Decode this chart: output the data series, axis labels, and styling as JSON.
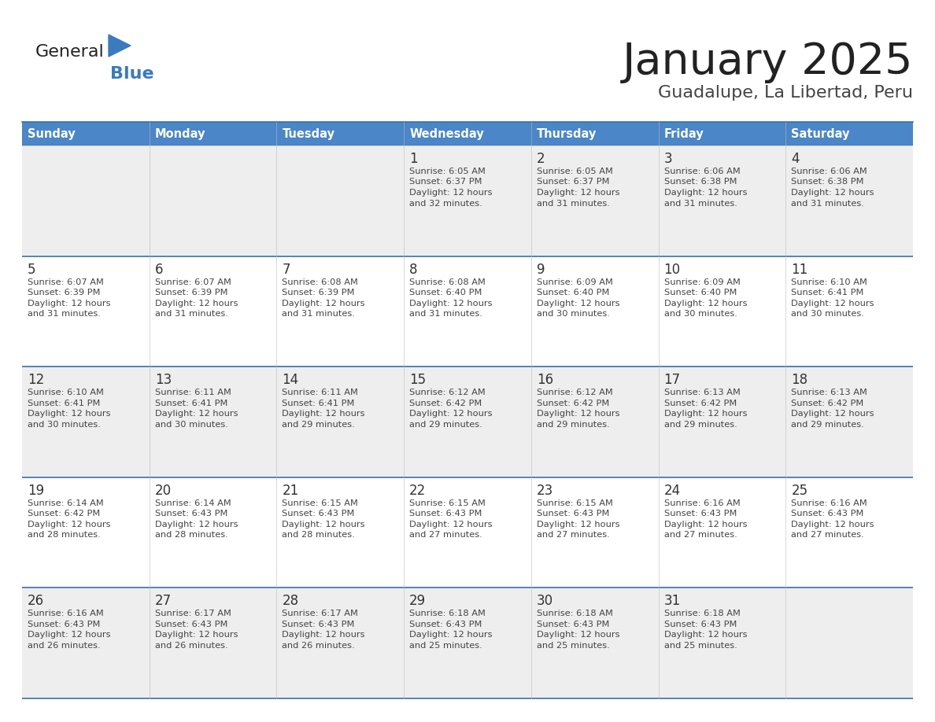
{
  "title": "January 2025",
  "subtitle": "Guadalupe, La Libertad, Peru",
  "header_bg": "#4a86c8",
  "header_text_color": "#ffffff",
  "day_names": [
    "Sunday",
    "Monday",
    "Tuesday",
    "Wednesday",
    "Thursday",
    "Friday",
    "Saturday"
  ],
  "row_bg_even": "#eeeeee",
  "row_bg_odd": "#ffffff",
  "cell_text_color": "#444444",
  "day_num_color": "#333333",
  "border_color": "#3a6fa8",
  "title_color": "#222222",
  "subtitle_color": "#444444",
  "logo_general_color": "#222222",
  "logo_blue_color": "#3a7abf",
  "calendar": [
    [
      {
        "day": "",
        "sunrise": "",
        "sunset": "",
        "daylight": ""
      },
      {
        "day": "",
        "sunrise": "",
        "sunset": "",
        "daylight": ""
      },
      {
        "day": "",
        "sunrise": "",
        "sunset": "",
        "daylight": ""
      },
      {
        "day": "1",
        "sunrise": "6:05 AM",
        "sunset": "6:37 PM",
        "daylight": "12 hours and 32 minutes."
      },
      {
        "day": "2",
        "sunrise": "6:05 AM",
        "sunset": "6:37 PM",
        "daylight": "12 hours and 31 minutes."
      },
      {
        "day": "3",
        "sunrise": "6:06 AM",
        "sunset": "6:38 PM",
        "daylight": "12 hours and 31 minutes."
      },
      {
        "day": "4",
        "sunrise": "6:06 AM",
        "sunset": "6:38 PM",
        "daylight": "12 hours and 31 minutes."
      }
    ],
    [
      {
        "day": "5",
        "sunrise": "6:07 AM",
        "sunset": "6:39 PM",
        "daylight": "12 hours and 31 minutes."
      },
      {
        "day": "6",
        "sunrise": "6:07 AM",
        "sunset": "6:39 PM",
        "daylight": "12 hours and 31 minutes."
      },
      {
        "day": "7",
        "sunrise": "6:08 AM",
        "sunset": "6:39 PM",
        "daylight": "12 hours and 31 minutes."
      },
      {
        "day": "8",
        "sunrise": "6:08 AM",
        "sunset": "6:40 PM",
        "daylight": "12 hours and 31 minutes."
      },
      {
        "day": "9",
        "sunrise": "6:09 AM",
        "sunset": "6:40 PM",
        "daylight": "12 hours and 30 minutes."
      },
      {
        "day": "10",
        "sunrise": "6:09 AM",
        "sunset": "6:40 PM",
        "daylight": "12 hours and 30 minutes."
      },
      {
        "day": "11",
        "sunrise": "6:10 AM",
        "sunset": "6:41 PM",
        "daylight": "12 hours and 30 minutes."
      }
    ],
    [
      {
        "day": "12",
        "sunrise": "6:10 AM",
        "sunset": "6:41 PM",
        "daylight": "12 hours and 30 minutes."
      },
      {
        "day": "13",
        "sunrise": "6:11 AM",
        "sunset": "6:41 PM",
        "daylight": "12 hours and 30 minutes."
      },
      {
        "day": "14",
        "sunrise": "6:11 AM",
        "sunset": "6:41 PM",
        "daylight": "12 hours and 29 minutes."
      },
      {
        "day": "15",
        "sunrise": "6:12 AM",
        "sunset": "6:42 PM",
        "daylight": "12 hours and 29 minutes."
      },
      {
        "day": "16",
        "sunrise": "6:12 AM",
        "sunset": "6:42 PM",
        "daylight": "12 hours and 29 minutes."
      },
      {
        "day": "17",
        "sunrise": "6:13 AM",
        "sunset": "6:42 PM",
        "daylight": "12 hours and 29 minutes."
      },
      {
        "day": "18",
        "sunrise": "6:13 AM",
        "sunset": "6:42 PM",
        "daylight": "12 hours and 29 minutes."
      }
    ],
    [
      {
        "day": "19",
        "sunrise": "6:14 AM",
        "sunset": "6:42 PM",
        "daylight": "12 hours and 28 minutes."
      },
      {
        "day": "20",
        "sunrise": "6:14 AM",
        "sunset": "6:43 PM",
        "daylight": "12 hours and 28 minutes."
      },
      {
        "day": "21",
        "sunrise": "6:15 AM",
        "sunset": "6:43 PM",
        "daylight": "12 hours and 28 minutes."
      },
      {
        "day": "22",
        "sunrise": "6:15 AM",
        "sunset": "6:43 PM",
        "daylight": "12 hours and 27 minutes."
      },
      {
        "day": "23",
        "sunrise": "6:15 AM",
        "sunset": "6:43 PM",
        "daylight": "12 hours and 27 minutes."
      },
      {
        "day": "24",
        "sunrise": "6:16 AM",
        "sunset": "6:43 PM",
        "daylight": "12 hours and 27 minutes."
      },
      {
        "day": "25",
        "sunrise": "6:16 AM",
        "sunset": "6:43 PM",
        "daylight": "12 hours and 27 minutes."
      }
    ],
    [
      {
        "day": "26",
        "sunrise": "6:16 AM",
        "sunset": "6:43 PM",
        "daylight": "12 hours and 26 minutes."
      },
      {
        "day": "27",
        "sunrise": "6:17 AM",
        "sunset": "6:43 PM",
        "daylight": "12 hours and 26 minutes."
      },
      {
        "day": "28",
        "sunrise": "6:17 AM",
        "sunset": "6:43 PM",
        "daylight": "12 hours and 26 minutes."
      },
      {
        "day": "29",
        "sunrise": "6:18 AM",
        "sunset": "6:43 PM",
        "daylight": "12 hours and 25 minutes."
      },
      {
        "day": "30",
        "sunrise": "6:18 AM",
        "sunset": "6:43 PM",
        "daylight": "12 hours and 25 minutes."
      },
      {
        "day": "31",
        "sunrise": "6:18 AM",
        "sunset": "6:43 PM",
        "daylight": "12 hours and 25 minutes."
      },
      {
        "day": "",
        "sunrise": "",
        "sunset": "",
        "daylight": ""
      }
    ]
  ]
}
